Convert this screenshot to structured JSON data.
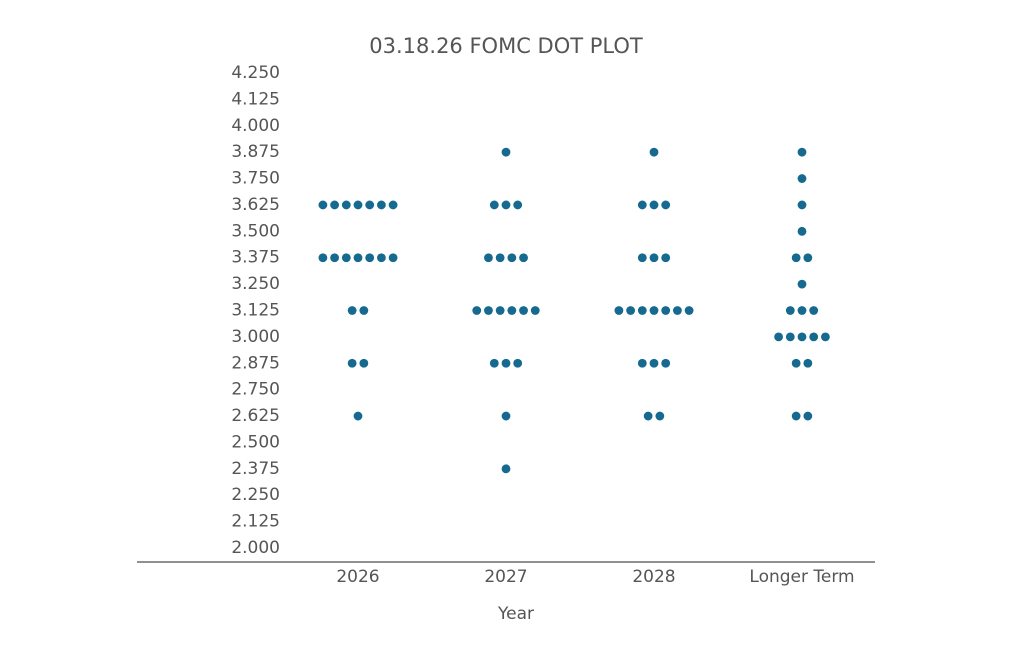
{
  "chart_data": {
    "type": "dot",
    "title": "03.18.26 FOMC DOT PLOT",
    "x_label": "Year",
    "color": "#16698f",
    "categories": [
      "2026",
      "2027",
      "2028",
      "Longer Term"
    ],
    "values": [
      [
        3.625,
        3.625,
        3.625,
        3.625,
        3.625,
        3.625,
        3.625,
        3.375,
        3.375,
        3.375,
        3.375,
        3.375,
        3.375,
        3.375,
        3.125,
        3.125,
        2.875,
        2.875,
        2.625
      ],
      [
        3.875,
        3.625,
        3.625,
        3.625,
        3.375,
        3.375,
        3.375,
        3.375,
        3.125,
        3.125,
        3.125,
        3.125,
        3.125,
        3.125,
        2.875,
        2.875,
        2.875,
        2.625,
        2.375
      ],
      [
        3.875,
        3.625,
        3.625,
        3.625,
        3.375,
        3.375,
        3.375,
        3.125,
        3.125,
        3.125,
        3.125,
        3.125,
        3.125,
        3.125,
        2.875,
        2.875,
        2.875,
        2.625,
        2.625
      ],
      [
        3.875,
        3.75,
        3.625,
        3.5,
        3.375,
        3.375,
        3.25,
        3.125,
        3.125,
        3.125,
        3,
        3,
        3,
        3,
        3,
        2.875,
        2.875,
        2.625,
        2.625
      ]
    ],
    "ylim": [
      2,
      4.25
    ],
    "yticks": [
      {
        "value": 4.25,
        "label": "4.250"
      },
      {
        "value": 4.125,
        "label": "4.125"
      },
      {
        "value": 4,
        "label": "4.000"
      },
      {
        "value": 3.875,
        "label": "3.875"
      },
      {
        "value": 3.75,
        "label": "3.750"
      },
      {
        "value": 3.625,
        "label": "3.625"
      },
      {
        "value": 3.5,
        "label": "3.500"
      },
      {
        "value": 3.375,
        "label": "3.375"
      },
      {
        "value": 3.25,
        "label": "3.250"
      },
      {
        "value": 3.125,
        "label": "3.125"
      },
      {
        "value": 3,
        "label": "3.000"
      },
      {
        "value": 2.875,
        "label": "2.875"
      },
      {
        "value": 2.75,
        "label": "2.750"
      },
      {
        "value": 2.625,
        "label": "2.625"
      },
      {
        "value": 2.5,
        "label": "2.500"
      },
      {
        "value": 2.375,
        "label": "2.375"
      },
      {
        "value": 2.25,
        "label": "2.250"
      },
      {
        "value": 2.125,
        "label": "2.125"
      },
      {
        "value": 2,
        "label": "2.000"
      }
    ],
    "grid": false
  }
}
